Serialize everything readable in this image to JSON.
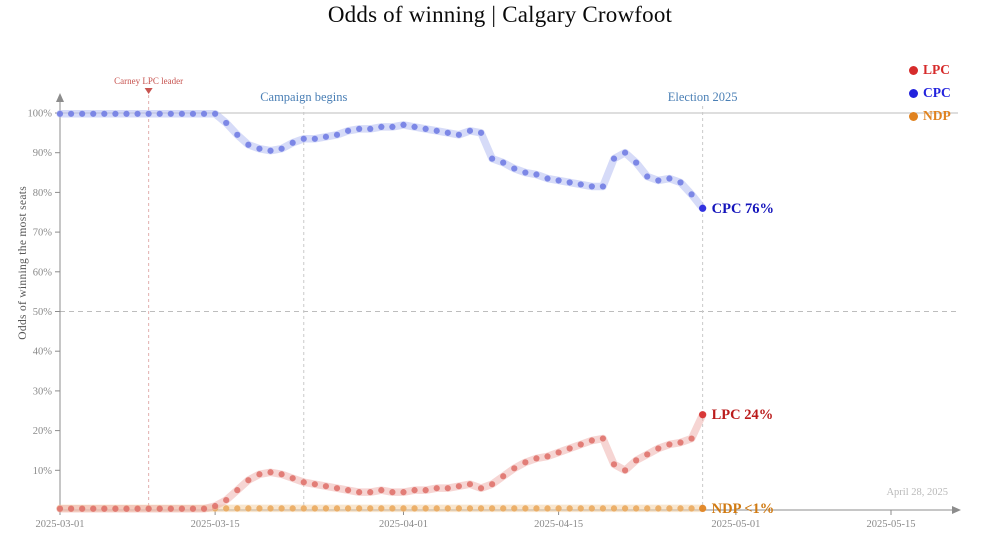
{
  "chart_data": {
    "type": "scatter",
    "title": "Odds of winning | Calgary Crowfoot",
    "ylabel": "Odds of winning the most seats",
    "date_note": "April 28, 2025",
    "ylim": [
      0,
      100
    ],
    "y_ticks": [
      100,
      90,
      80,
      70,
      60,
      50,
      40,
      30,
      20,
      10
    ],
    "y_tick_suffix": "%",
    "reference_lines": [
      {
        "y": 100,
        "style": "solid"
      },
      {
        "y": 50,
        "style": "dashed"
      }
    ],
    "x_start_date": "2025-03-01",
    "x_unit": "days since 2025-03-01, one point per day",
    "x_ticks": [
      {
        "day": 0,
        "label": "2025-03-01"
      },
      {
        "day": 14,
        "label": "2025-03-15"
      },
      {
        "day": 31,
        "label": "2025-04-01"
      },
      {
        "day": 45,
        "label": "2025-04-15"
      },
      {
        "day": 61,
        "label": "2025-05-01"
      },
      {
        "day": 75,
        "label": "2025-05-15"
      }
    ],
    "events": [
      {
        "label": "Carney LPC leader",
        "day": 8,
        "line_color": "#e3b0ae",
        "text_color": "#c75450",
        "marker": "down-triangle"
      },
      {
        "label": "Campaign begins",
        "day": 22,
        "line_color": "#c9c9c9",
        "text_color": "#4a7fb5"
      },
      {
        "label": "Election 2025",
        "day": 58,
        "line_color": "#c9c9c9",
        "text_color": "#4a7fb5"
      }
    ],
    "series": [
      {
        "name": "LPC",
        "legend_color": "#d62b2b",
        "dot_color": "#e0756f",
        "band_color": "#efb3ae",
        "end_label": "LPC 24%",
        "end_label_color": "#bb1c1c",
        "values": [
          0.3,
          0.3,
          0.3,
          0.3,
          0.3,
          0.3,
          0.3,
          0.3,
          0.3,
          0.3,
          0.3,
          0.3,
          0.3,
          0.3,
          1,
          2.5,
          5,
          7.5,
          9,
          9.5,
          9,
          8,
          7,
          6.5,
          6,
          5.5,
          5,
          4.5,
          4.5,
          5,
          4.5,
          4.5,
          5,
          5,
          5.5,
          5.5,
          6,
          6.5,
          5.5,
          6.5,
          8.5,
          10.5,
          12,
          13,
          13.5,
          14.5,
          15.5,
          16.5,
          17.5,
          18,
          11.5,
          10,
          12.5,
          14,
          15.5,
          16.5,
          17,
          18,
          24
        ]
      },
      {
        "name": "CPC",
        "legend_color": "#2323dd",
        "dot_color": "#7480e4",
        "band_color": "#b5bdf2",
        "end_label": "CPC 76%",
        "end_label_color": "#1414bb",
        "values": [
          99.8,
          99.8,
          99.8,
          99.8,
          99.8,
          99.8,
          99.8,
          99.8,
          99.8,
          99.8,
          99.8,
          99.8,
          99.8,
          99.8,
          99.8,
          97.5,
          94.5,
          92,
          91,
          90.5,
          91,
          92.5,
          93.5,
          93.5,
          94,
          94.5,
          95.5,
          96,
          96,
          96.5,
          96.5,
          97,
          96.5,
          96,
          95.5,
          95,
          94.5,
          95.5,
          95,
          88.5,
          87.5,
          86,
          85,
          84.5,
          83.5,
          83,
          82.5,
          82,
          81.5,
          81.5,
          88.5,
          90,
          87.5,
          84,
          83,
          83.5,
          82.5,
          79.5,
          76
        ]
      },
      {
        "name": "NDP",
        "legend_color": "#e0821f",
        "dot_color": "#eaab62",
        "band_color": "#f3d2a8",
        "end_label": "NDP <1%",
        "end_label_color": "#d07a12",
        "values": [
          0.4,
          0.4,
          0.4,
          0.4,
          0.4,
          0.4,
          0.4,
          0.4,
          0.4,
          0.4,
          0.4,
          0.4,
          0.4,
          0.4,
          0.4,
          0.4,
          0.4,
          0.4,
          0.4,
          0.4,
          0.4,
          0.4,
          0.4,
          0.4,
          0.4,
          0.4,
          0.4,
          0.4,
          0.4,
          0.4,
          0.4,
          0.4,
          0.4,
          0.4,
          0.4,
          0.4,
          0.4,
          0.4,
          0.4,
          0.4,
          0.4,
          0.4,
          0.4,
          0.4,
          0.4,
          0.4,
          0.4,
          0.4,
          0.4,
          0.4,
          0.4,
          0.4,
          0.4,
          0.4,
          0.4,
          0.4,
          0.4,
          0.4,
          0.4
        ]
      }
    ],
    "legend_position": "top-right",
    "grid": "off"
  }
}
